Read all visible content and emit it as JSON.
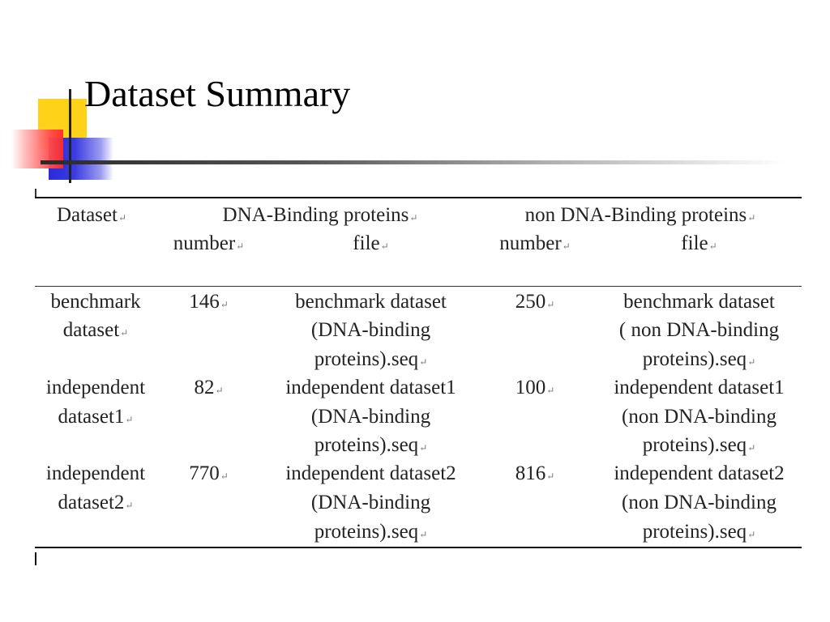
{
  "slide": {
    "title": "Dataset Summary"
  },
  "table": {
    "header": {
      "dataset": "Dataset",
      "dna_group": "DNA-Binding proteins",
      "non_dna_group": "non DNA-Binding proteins",
      "dna_number": "number",
      "dna_file": "file",
      "non_number": "number",
      "non_file": "file"
    },
    "rows": [
      {
        "dataset_line1": "benchmark",
        "dataset_line2": "dataset",
        "dna_number": "146",
        "dna_file_line1": "benchmark dataset",
        "dna_file_line2": "(DNA-binding",
        "dna_file_line3": "proteins).seq",
        "non_number": "250",
        "non_file_line1": "benchmark dataset",
        "non_file_line2": "( non DNA-binding",
        "non_file_line3": "proteins).seq"
      },
      {
        "dataset_line1": "independent",
        "dataset_line2": "dataset1",
        "dna_number": "82",
        "dna_file_line1": "independent dataset1",
        "dna_file_line2": "(DNA-binding",
        "dna_file_line3": "proteins).seq",
        "non_number": "100",
        "non_file_line1": "independent dataset1",
        "non_file_line2": "(non DNA-binding",
        "non_file_line3": "proteins).seq"
      },
      {
        "dataset_line1": "independent",
        "dataset_line2": "dataset2",
        "dna_number": "770",
        "dna_file_line1": "independent dataset2",
        "dna_file_line2": "(DNA-binding",
        "dna_file_line3": "proteins).seq",
        "non_number": "816",
        "non_file_line1": "independent dataset2",
        "non_file_line2": "(non DNA-binding",
        "non_file_line3": "proteins).seq"
      }
    ]
  },
  "colors": {
    "deco_yellow": "#ffd21a",
    "deco_blue": "#2b2bd6",
    "deco_red": "#ff2a2a"
  }
}
